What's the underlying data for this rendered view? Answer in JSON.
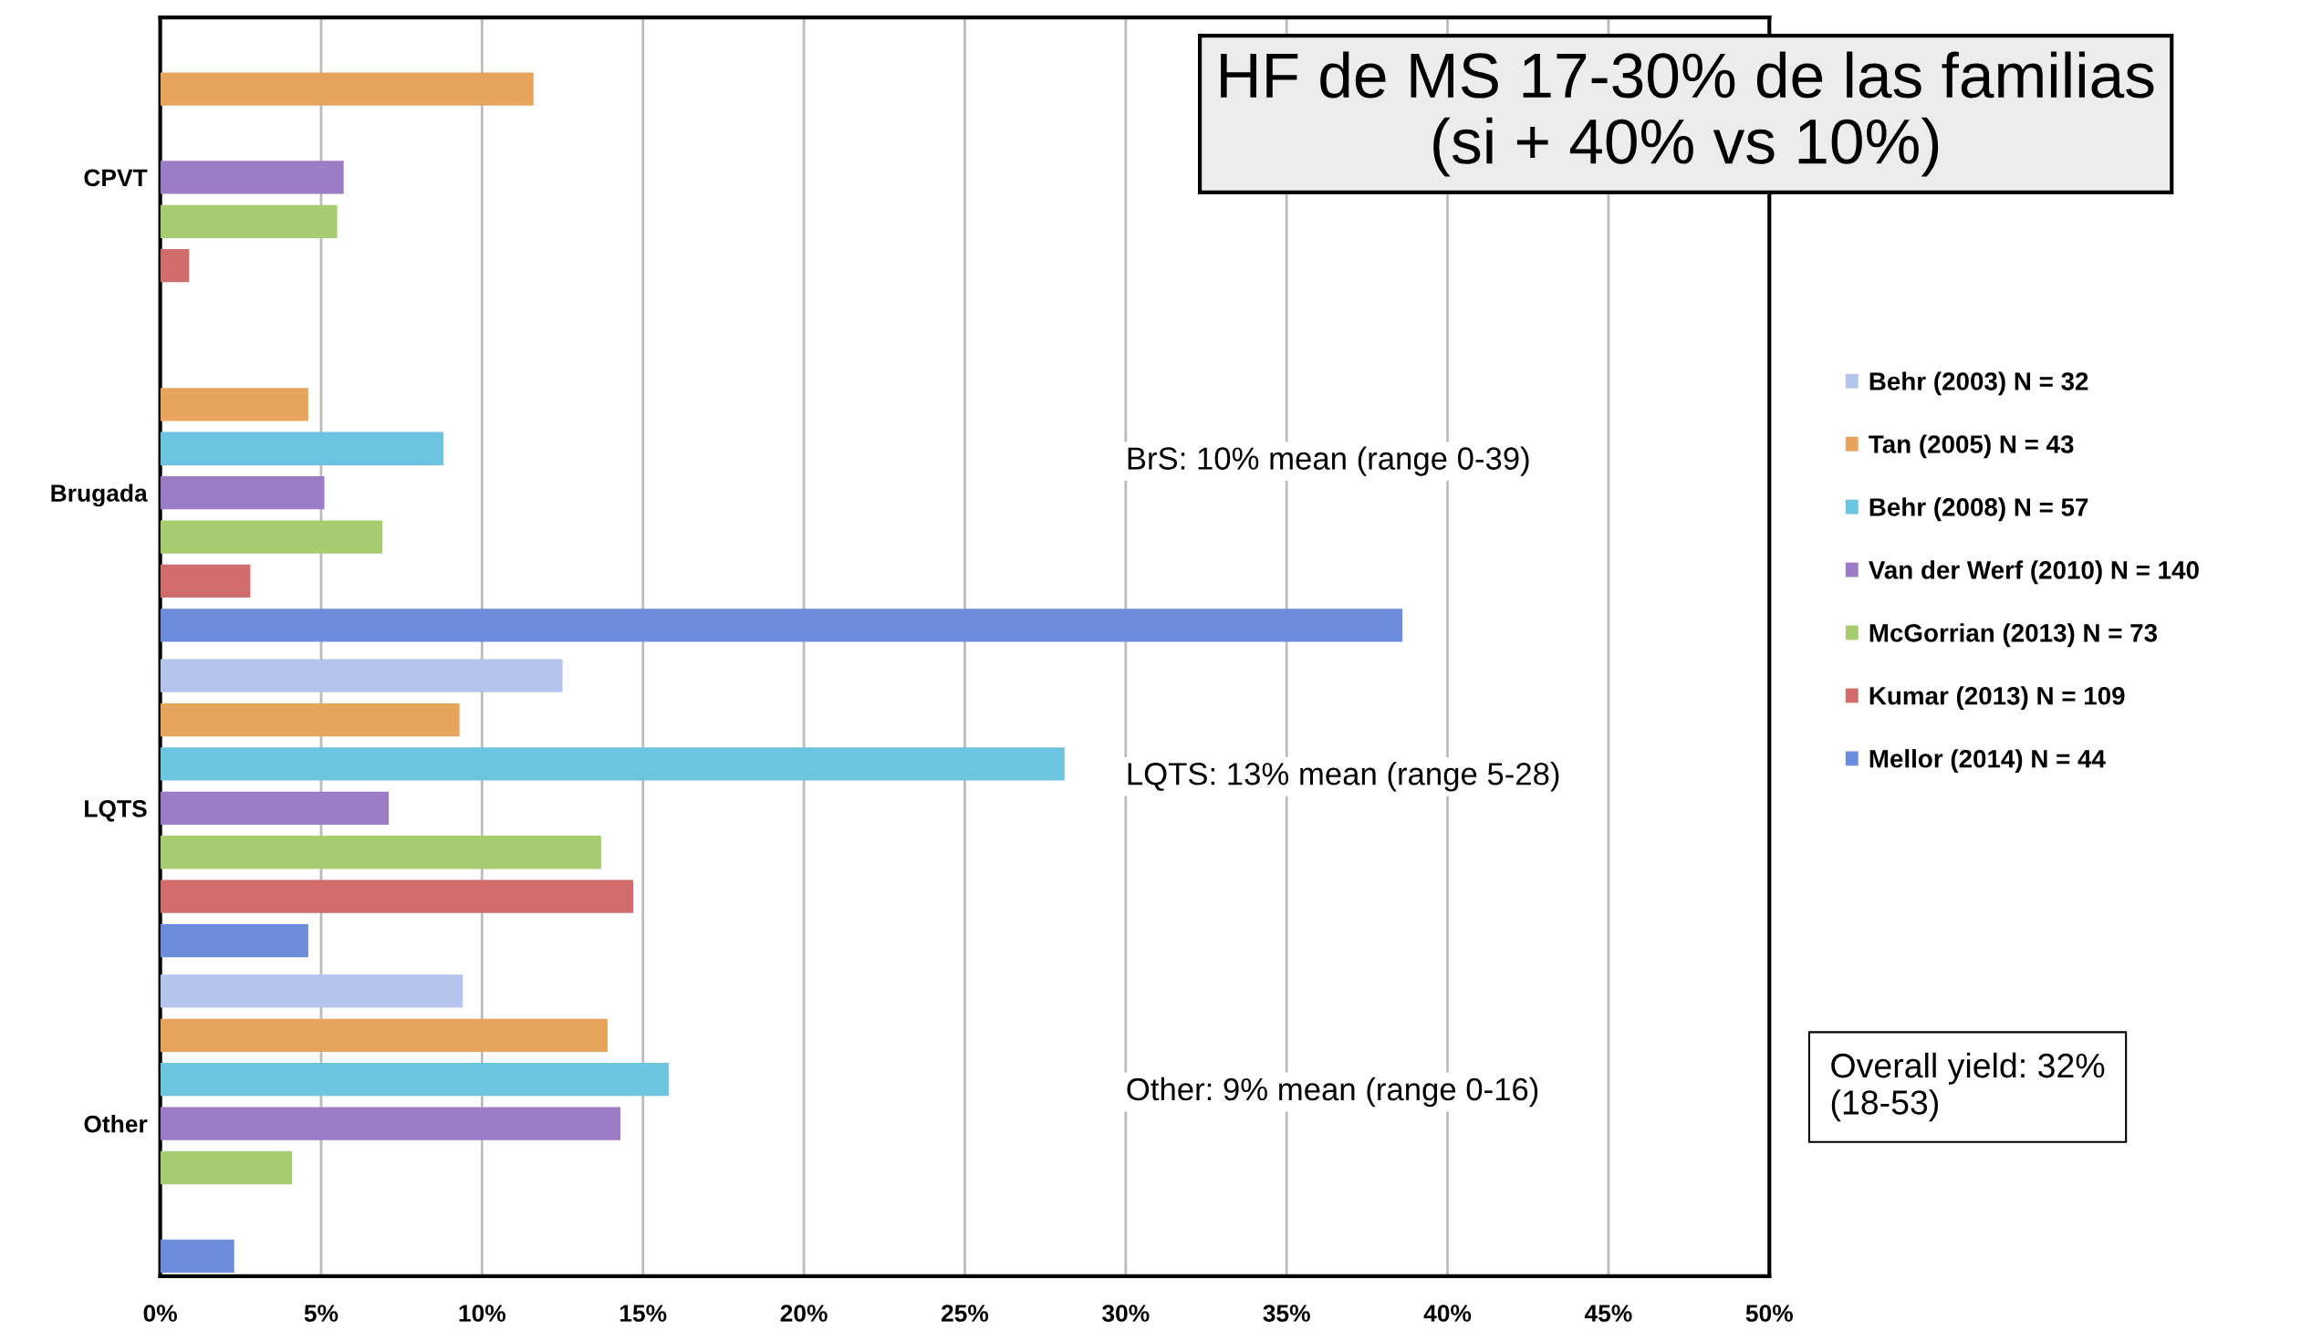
{
  "chart_data": {
    "type": "bar",
    "orientation": "horizontal",
    "title": "HF de MS 17-30% de las familias\n(si + 40% vs 10%)",
    "categories": [
      "CPVT",
      "Brugada",
      "LQTS",
      "Other"
    ],
    "series": [
      {
        "name": "Behr (2003) N = 32",
        "color": "#b4c4ec",
        "values": [
          null,
          null,
          12.5,
          9.4
        ]
      },
      {
        "name": "Tan (2005) N = 43",
        "color": "#e8a45c",
        "values": [
          11.6,
          4.6,
          9.3,
          13.9
        ]
      },
      {
        "name": "Behr (2008) N = 57",
        "color": "#6cc4e0",
        "values": [
          null,
          8.8,
          28.1,
          15.8
        ]
      },
      {
        "name": "Van der Werf (2010) N = 140",
        "color": "#9c7cc4",
        "values": [
          5.7,
          5.1,
          7.1,
          14.3
        ]
      },
      {
        "name": "McGorrian (2013) N = 73",
        "color": "#a8cc70",
        "values": [
          5.5,
          6.9,
          13.7,
          4.1
        ]
      },
      {
        "name": "Kumar (2013) N = 109",
        "color": "#d06c6c",
        "values": [
          0.9,
          2.8,
          14.7,
          null
        ]
      },
      {
        "name": "Mellor (2014) N = 44",
        "color": "#6c8cdc",
        "values": [
          null,
          38.6,
          4.6,
          2.3
        ]
      }
    ],
    "xlim": [
      0,
      50
    ],
    "xticks": [
      {
        "value": 0,
        "label": "0%"
      },
      {
        "value": 5,
        "label": "5%"
      },
      {
        "value": 10,
        "label": "10%"
      },
      {
        "value": 15,
        "label": "15%"
      },
      {
        "value": 20,
        "label": "20%"
      },
      {
        "value": 25,
        "label": "25%"
      },
      {
        "value": 30,
        "label": "30%"
      },
      {
        "value": 35,
        "label": "35%"
      },
      {
        "value": 40,
        "label": "40%"
      },
      {
        "value": 45,
        "label": "45%"
      },
      {
        "value": 50,
        "label": "50%"
      }
    ],
    "annotations": [
      "BrS: 10% mean (range 0-39)",
      "LQTS: 13% mean (range 5-28)",
      "Other: 9% mean (range 0-16)",
      "Overall yield: 32%\n(18-53)"
    ],
    "grid": "x",
    "legend": "right"
  }
}
